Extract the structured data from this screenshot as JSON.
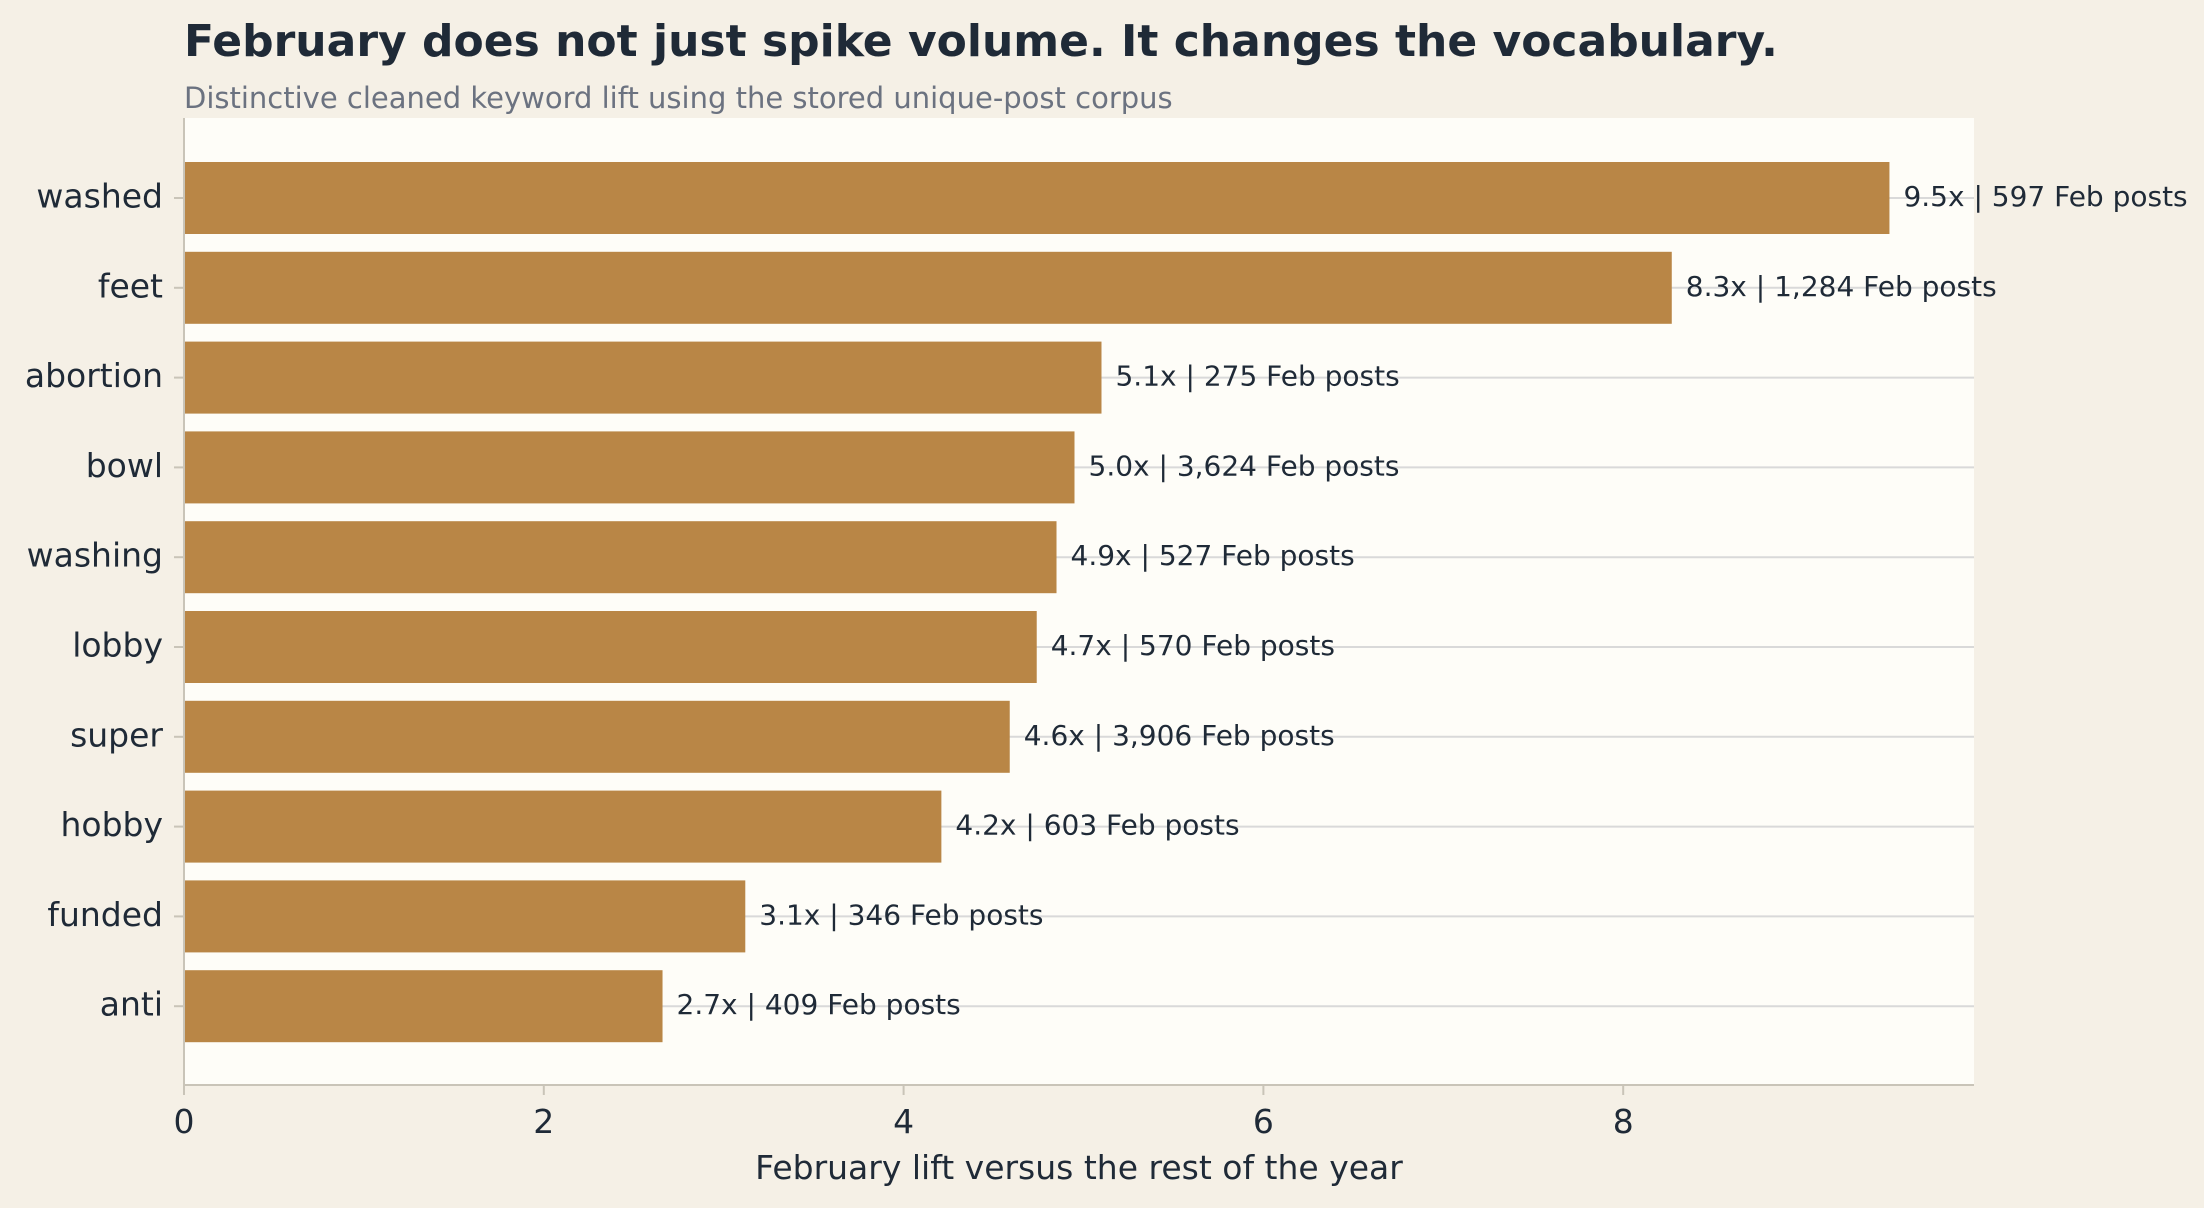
{
  "chart_data": {
    "type": "bar",
    "orientation": "horizontal",
    "title": "February does not just spike volume. It changes the vocabulary.",
    "subtitle": "Distinctive cleaned keyword lift using the stored unique-post corpus",
    "xlabel": "February lift versus the rest of the year",
    "ylabel": "",
    "xlim": [
      0,
      9.95
    ],
    "xticks": [
      0,
      2,
      4,
      6,
      8
    ],
    "grid": "horizontal lines at each bar",
    "legend": "none",
    "categories": [
      "washed",
      "feet",
      "abortion",
      "bowl",
      "washing",
      "lobby",
      "super",
      "hobby",
      "funded",
      "anti"
    ],
    "values": [
      9.48,
      8.27,
      5.1,
      4.95,
      4.85,
      4.74,
      4.59,
      4.21,
      3.12,
      2.66
    ],
    "data_labels": [
      "9.5x | 597 Feb posts",
      "8.3x | 1,284 Feb posts",
      "5.1x | 275 Feb posts",
      "5.0x | 3,624 Feb posts",
      "4.9x | 527 Feb posts",
      "4.7x | 570 Feb posts",
      "4.6x | 3,906 Feb posts",
      "4.2x | 603 Feb posts",
      "3.1x | 346 Feb posts",
      "2.7x | 409 Feb posts"
    ],
    "colors": {
      "bar": "#b98646",
      "plot_background": "#fefdf8",
      "page_background": "#f5f0e6",
      "grid": "#d9d9d9",
      "axis": "#c9c4b8"
    }
  }
}
